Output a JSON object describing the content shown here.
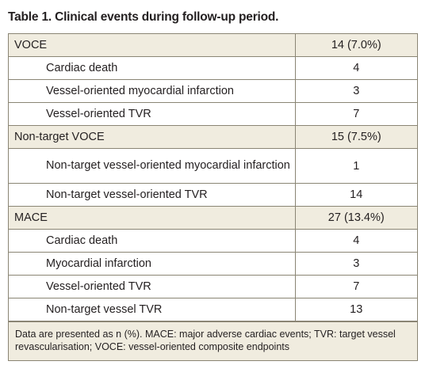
{
  "title": "Table 1. Clinical events during follow-up period.",
  "rows": [
    {
      "type": "group",
      "label": "VOCE",
      "value": "14 (7.0%)"
    },
    {
      "type": "sub",
      "label": "Cardiac death",
      "value": "4"
    },
    {
      "type": "sub",
      "label": "Vessel-oriented myocardial infarction",
      "value": "3"
    },
    {
      "type": "sub",
      "label": "Vessel-oriented TVR",
      "value": "7"
    },
    {
      "type": "group",
      "label": "Non-target VOCE",
      "value": "15 (7.5%)"
    },
    {
      "type": "sub",
      "label": "Non-target vessel-oriented myocardial infarction",
      "value": "1"
    },
    {
      "type": "sub",
      "label": "Non-target vessel-oriented TVR",
      "value": "14"
    },
    {
      "type": "group",
      "label": "MACE",
      "value": "27 (13.4%)"
    },
    {
      "type": "sub",
      "label": "Cardiac death",
      "value": "4"
    },
    {
      "type": "sub",
      "label": "Myocardial infarction",
      "value": "3"
    },
    {
      "type": "sub",
      "label": "Vessel-oriented TVR",
      "value": "7"
    },
    {
      "type": "sub",
      "label": "Non-target vessel TVR",
      "value": "13"
    }
  ],
  "footnote": "Data are presented as n (%). MACE: major adverse cardiac events; TVR: target vessel revascularisation; VOCE: vessel-oriented composite endpoints"
}
